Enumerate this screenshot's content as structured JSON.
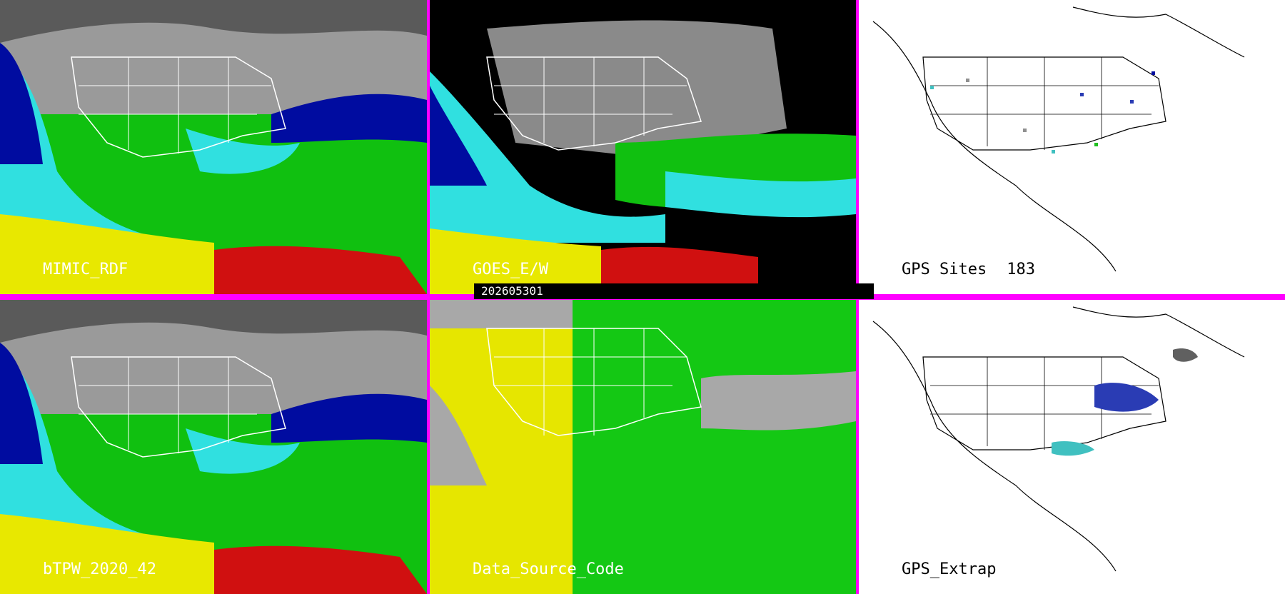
{
  "panels": [
    {
      "id": "mimic",
      "label": "MIMIC_RDF"
    },
    {
      "id": "goes",
      "label": "GOES_E/W"
    },
    {
      "id": "gps",
      "label": "GPS Sites",
      "count": "183"
    },
    {
      "id": "btpw",
      "label": "bTPW_2020_42"
    },
    {
      "id": "dsc",
      "label": "Data_Source_Code"
    },
    {
      "id": "gpsx",
      "label": "GPS_Extrap"
    }
  ],
  "timestamp": "202605301",
  "colors": {
    "divider": "#ff00ff",
    "dry_gray": "#b4b4b4",
    "dark_blue": "#000ca0",
    "cyan": "#30e0e0",
    "green": "#10c010",
    "yellow": "#e8e800",
    "red": "#d01010",
    "source_yellow": "#e6e600",
    "source_green": "#14c814",
    "source_gray": "#a8a8a8"
  }
}
